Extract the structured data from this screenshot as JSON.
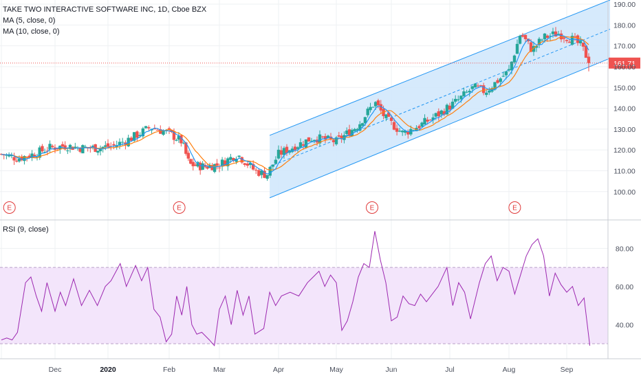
{
  "header": {
    "title": "TAKE TWO INTERACTIVE SOFTWARE INC, 1D, Cboe BZX",
    "ma5": "MA (5, close, 0)",
    "ma10": "MA (10, close, 0)",
    "rsi": "RSI (9, close)"
  },
  "colors": {
    "up": "#26a69a",
    "down": "#ef5350",
    "ma5": "#2196f3",
    "ma10": "#ff7f0e",
    "channel": "#2196f3",
    "channel_fill": "#cfe6fb",
    "rsi_line": "#9c27b0",
    "rsi_band": "#f3e5fb",
    "price_line": "#ef5350",
    "earnings": "#e03a3a"
  },
  "current_price": "161.71",
  "earnings_marker_label": "E",
  "chart_data": [
    {
      "type": "candlestick",
      "title": "TAKE TWO INTERACTIVE SOFTWARE INC, 1D, Cboe BZX",
      "ylim": [
        93,
        192
      ],
      "yticks": [
        "100.00",
        "110.00",
        "120.00",
        "130.00",
        "140.00",
        "150.00",
        "160.00",
        "170.00",
        "180.00",
        "190.00"
      ],
      "x_labels": [
        "Dec",
        "2020",
        "Feb",
        "Mar",
        "Apr",
        "May",
        "Jun",
        "Jul",
        "Aug",
        "Sep"
      ],
      "x_label_positions": [
        1,
        2,
        3,
        4,
        5,
        6,
        7,
        8,
        9,
        10
      ],
      "x_start_month": 0,
      "x_end_month": 10.4,
      "close_anchors": [
        [
          0.0,
          118
        ],
        [
          0.3,
          116
        ],
        [
          0.6,
          118
        ],
        [
          0.9,
          121
        ],
        [
          1.2,
          122
        ],
        [
          1.5,
          121
        ],
        [
          1.8,
          121
        ],
        [
          2.1,
          122
        ],
        [
          2.4,
          126
        ],
        [
          2.7,
          131
        ],
        [
          3.0,
          128
        ],
        [
          3.25,
          124
        ],
        [
          3.4,
          113
        ],
        [
          3.7,
          112
        ],
        [
          4.0,
          113
        ],
        [
          4.3,
          118
        ],
        [
          4.6,
          110
        ],
        [
          4.8,
          108
        ],
        [
          5.0,
          118
        ],
        [
          5.3,
          122
        ],
        [
          5.6,
          126
        ],
        [
          6.0,
          124
        ],
        [
          6.4,
          132
        ],
        [
          6.7,
          143
        ],
        [
          6.9,
          135
        ],
        [
          7.2,
          128
        ],
        [
          7.5,
          132
        ],
        [
          7.8,
          137
        ],
        [
          8.1,
          143
        ],
        [
          8.4,
          150
        ],
        [
          8.6,
          148
        ],
        [
          9.0,
          158
        ],
        [
          9.2,
          176
        ],
        [
          9.4,
          168
        ],
        [
          9.6,
          174
        ],
        [
          9.85,
          176
        ],
        [
          10.1,
          173
        ],
        [
          10.25,
          170
        ],
        [
          10.4,
          161.71
        ]
      ],
      "channel": {
        "start": {
          "month": 4.85,
          "lower": 97,
          "upper": 127
        },
        "end": {
          "month": 10.75,
          "lower": 164,
          "upper": 192
        }
      },
      "earnings_months": [
        0.15,
        3.2,
        6.65,
        9.1
      ]
    },
    {
      "type": "line",
      "title": "RSI (9, close)",
      "ylim": [
        25,
        92
      ],
      "yticks": [
        "40.00",
        "60.00",
        "80.00"
      ],
      "bands": [
        30,
        70
      ],
      "points": [
        [
          0.0,
          32
        ],
        [
          0.1,
          33
        ],
        [
          0.2,
          32
        ],
        [
          0.3,
          36
        ],
        [
          0.45,
          62
        ],
        [
          0.55,
          65
        ],
        [
          0.65,
          55
        ],
        [
          0.75,
          47
        ],
        [
          0.85,
          62
        ],
        [
          1.0,
          47
        ],
        [
          1.1,
          57
        ],
        [
          1.2,
          50
        ],
        [
          1.35,
          64
        ],
        [
          1.5,
          50
        ],
        [
          1.65,
          58
        ],
        [
          1.8,
          50
        ],
        [
          1.95,
          60
        ],
        [
          2.05,
          63
        ],
        [
          2.2,
          72
        ],
        [
          2.3,
          60
        ],
        [
          2.45,
          71
        ],
        [
          2.55,
          63
        ],
        [
          2.65,
          70
        ],
        [
          2.75,
          48
        ],
        [
          2.85,
          44
        ],
        [
          2.95,
          31
        ],
        [
          3.05,
          35
        ],
        [
          3.15,
          55
        ],
        [
          3.25,
          45
        ],
        [
          3.35,
          60
        ],
        [
          3.45,
          40
        ],
        [
          3.55,
          35
        ],
        [
          3.65,
          36
        ],
        [
          3.8,
          32
        ],
        [
          3.9,
          29
        ],
        [
          4.0,
          48
        ],
        [
          4.1,
          55
        ],
        [
          4.2,
          40
        ],
        [
          4.3,
          58
        ],
        [
          4.4,
          45
        ],
        [
          4.5,
          55
        ],
        [
          4.6,
          35
        ],
        [
          4.75,
          38
        ],
        [
          4.85,
          57
        ],
        [
          4.95,
          50
        ],
        [
          5.05,
          55
        ],
        [
          5.2,
          57
        ],
        [
          5.35,
          55
        ],
        [
          5.5,
          62
        ],
        [
          5.6,
          65
        ],
        [
          5.7,
          68
        ],
        [
          5.8,
          60
        ],
        [
          5.9,
          66
        ],
        [
          6.0,
          62
        ],
        [
          6.1,
          37
        ],
        [
          6.2,
          42
        ],
        [
          6.3,
          52
        ],
        [
          6.4,
          65
        ],
        [
          6.5,
          72
        ],
        [
          6.6,
          70
        ],
        [
          6.7,
          89
        ],
        [
          6.8,
          74
        ],
        [
          6.9,
          62
        ],
        [
          7.0,
          42
        ],
        [
          7.1,
          44
        ],
        [
          7.2,
          55
        ],
        [
          7.3,
          51
        ],
        [
          7.4,
          50
        ],
        [
          7.5,
          56
        ],
        [
          7.6,
          52
        ],
        [
          7.7,
          56
        ],
        [
          7.8,
          60
        ],
        [
          7.95,
          70
        ],
        [
          8.05,
          50
        ],
        [
          8.15,
          62
        ],
        [
          8.25,
          57
        ],
        [
          8.35,
          43
        ],
        [
          8.5,
          62
        ],
        [
          8.6,
          72
        ],
        [
          8.7,
          76
        ],
        [
          8.8,
          63
        ],
        [
          8.9,
          70
        ],
        [
          9.0,
          68
        ],
        [
          9.1,
          56
        ],
        [
          9.2,
          66
        ],
        [
          9.3,
          76
        ],
        [
          9.4,
          82
        ],
        [
          9.5,
          85
        ],
        [
          9.6,
          76
        ],
        [
          9.7,
          55
        ],
        [
          9.8,
          67
        ],
        [
          9.9,
          61
        ],
        [
          10.0,
          57
        ],
        [
          10.1,
          60
        ],
        [
          10.2,
          50
        ],
        [
          10.3,
          54
        ],
        [
          10.4,
          29
        ]
      ]
    }
  ]
}
